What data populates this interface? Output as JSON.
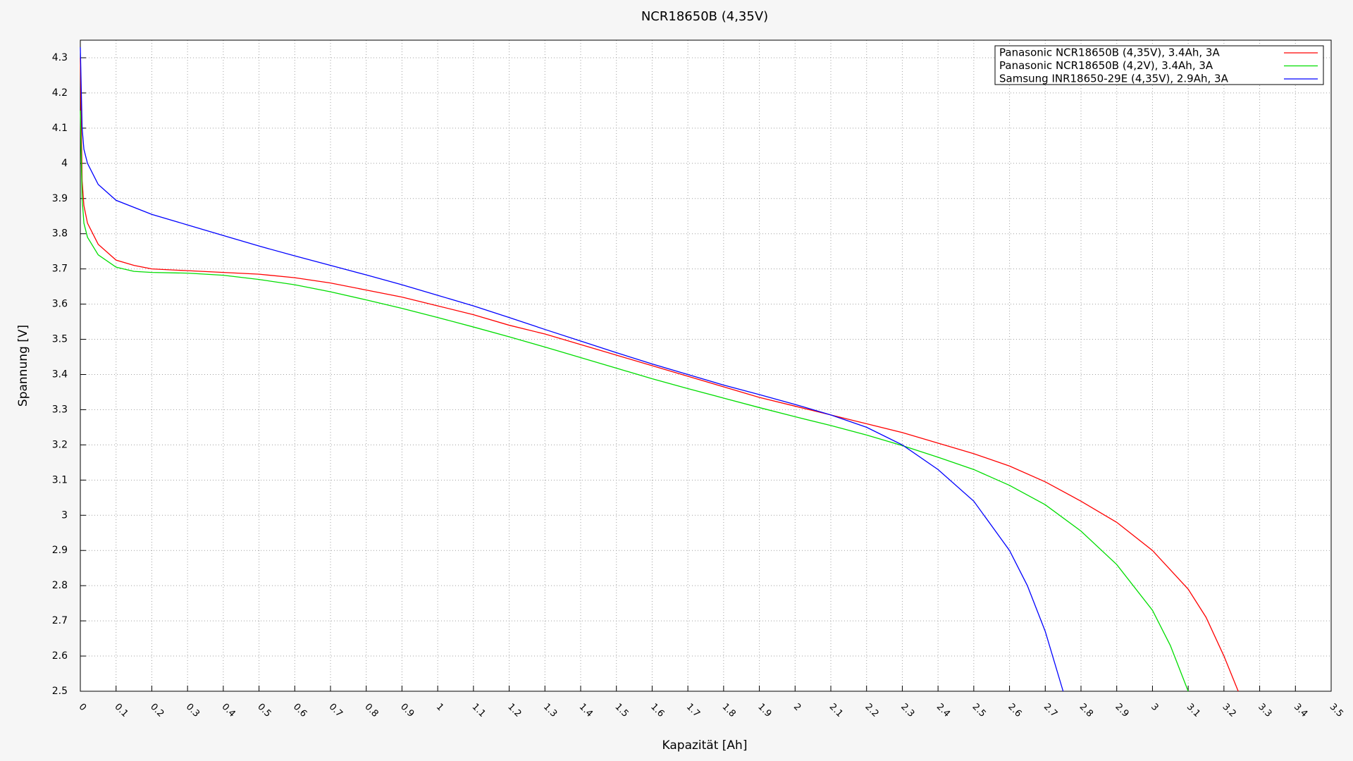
{
  "chart_data": {
    "type": "line",
    "title": "NCR18650B (4,35V)",
    "x_label": "Kapazität [Ah]",
    "y_label": "Spannung [V]",
    "xlim": [
      0,
      3.5
    ],
    "ylim": [
      2.5,
      4.35
    ],
    "xticks": [
      0,
      0.1,
      0.2,
      0.3,
      0.4,
      0.5,
      0.6,
      0.7,
      0.8,
      0.9,
      1,
      1.1,
      1.2,
      1.3,
      1.4,
      1.5,
      1.6,
      1.7,
      1.8,
      1.9,
      2,
      2.1,
      2.2,
      2.3,
      2.4,
      2.5,
      2.6,
      2.7,
      2.8,
      2.9,
      3,
      3.1,
      3.2,
      3.3,
      3.4,
      3.5
    ],
    "yticks": [
      2.5,
      2.6,
      2.7,
      2.8,
      2.9,
      3,
      3.1,
      3.2,
      3.3,
      3.4,
      3.5,
      3.6,
      3.7,
      3.8,
      3.9,
      4,
      4.1,
      4.2,
      4.3
    ],
    "grid": true,
    "legend": "top-right",
    "series": [
      {
        "name": "Panasonic NCR18650B (4,35V), 3.4Ah, 3A",
        "color": "#ff0000",
        "x": [
          0,
          0.005,
          0.01,
          0.02,
          0.05,
          0.1,
          0.15,
          0.2,
          0.3,
          0.4,
          0.5,
          0.6,
          0.7,
          0.8,
          0.9,
          1.0,
          1.1,
          1.2,
          1.3,
          1.4,
          1.5,
          1.6,
          1.7,
          1.8,
          1.9,
          2.0,
          2.1,
          2.2,
          2.3,
          2.4,
          2.5,
          2.6,
          2.7,
          2.8,
          2.9,
          3.0,
          3.1,
          3.15,
          3.2,
          3.24
        ],
        "values": [
          4.3,
          3.95,
          3.88,
          3.83,
          3.77,
          3.725,
          3.71,
          3.7,
          3.695,
          3.69,
          3.685,
          3.675,
          3.66,
          3.64,
          3.62,
          3.595,
          3.57,
          3.54,
          3.515,
          3.485,
          3.455,
          3.425,
          3.395,
          3.365,
          3.335,
          3.31,
          3.285,
          3.26,
          3.235,
          3.205,
          3.175,
          3.14,
          3.095,
          3.04,
          2.98,
          2.9,
          2.79,
          2.71,
          2.6,
          2.5
        ]
      },
      {
        "name": "Panasonic NCR18650B (4,2V), 3.4Ah, 3A",
        "color": "#00dd00",
        "x": [
          0,
          0.005,
          0.01,
          0.02,
          0.05,
          0.1,
          0.15,
          0.2,
          0.3,
          0.4,
          0.5,
          0.6,
          0.7,
          0.8,
          0.9,
          1.0,
          1.1,
          1.2,
          1.3,
          1.4,
          1.5,
          1.6,
          1.7,
          1.8,
          1.9,
          2.0,
          2.1,
          2.2,
          2.3,
          2.4,
          2.5,
          2.6,
          2.7,
          2.8,
          2.9,
          3.0,
          3.05,
          3.1
        ],
        "values": [
          4.15,
          3.9,
          3.83,
          3.79,
          3.74,
          3.705,
          3.693,
          3.69,
          3.688,
          3.682,
          3.67,
          3.655,
          3.635,
          3.612,
          3.588,
          3.562,
          3.535,
          3.507,
          3.478,
          3.448,
          3.418,
          3.388,
          3.36,
          3.333,
          3.306,
          3.28,
          3.255,
          3.228,
          3.198,
          3.165,
          3.13,
          3.085,
          3.03,
          2.955,
          2.86,
          2.73,
          2.63,
          2.5
        ]
      },
      {
        "name": "Samsung INR18650-29E (4,35V), 2.9Ah, 3A",
        "color": "#0000ff",
        "x": [
          0,
          0.005,
          0.01,
          0.02,
          0.05,
          0.1,
          0.2,
          0.3,
          0.4,
          0.5,
          0.6,
          0.7,
          0.8,
          0.9,
          1.0,
          1.1,
          1.2,
          1.3,
          1.4,
          1.5,
          1.6,
          1.7,
          1.8,
          1.9,
          2.0,
          2.1,
          2.2,
          2.3,
          2.4,
          2.5,
          2.6,
          2.65,
          2.7,
          2.75
        ],
        "values": [
          4.33,
          4.1,
          4.04,
          4.0,
          3.94,
          3.895,
          3.855,
          3.825,
          3.795,
          3.765,
          3.737,
          3.71,
          3.683,
          3.655,
          3.625,
          3.595,
          3.562,
          3.528,
          3.495,
          3.462,
          3.43,
          3.4,
          3.37,
          3.343,
          3.315,
          3.285,
          3.25,
          3.2,
          3.13,
          3.04,
          2.9,
          2.8,
          2.67,
          2.5
        ]
      }
    ]
  }
}
